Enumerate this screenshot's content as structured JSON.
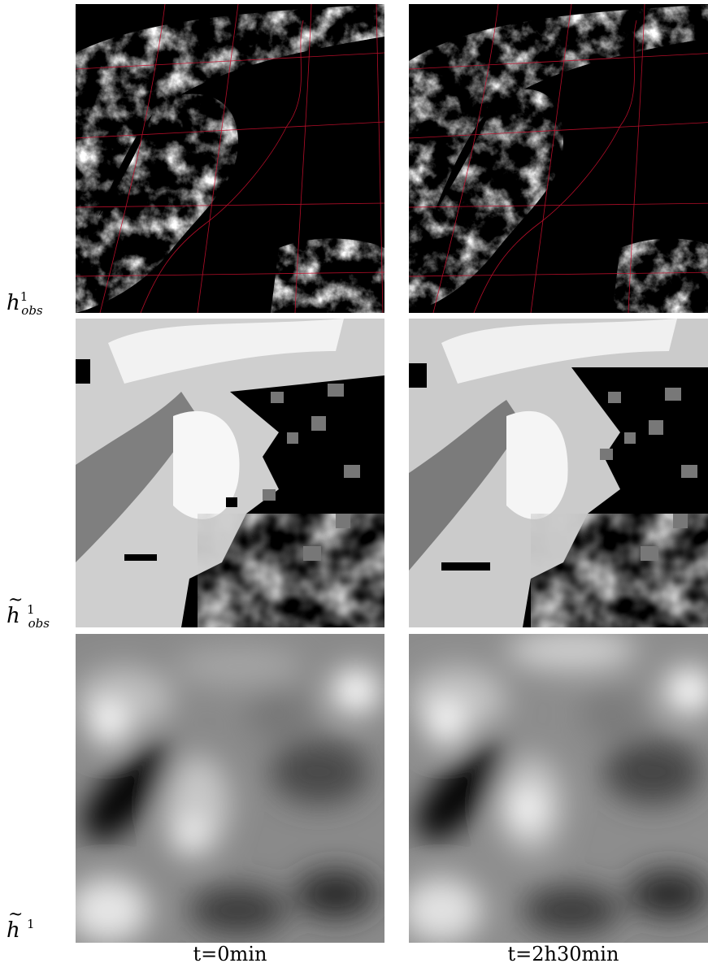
{
  "rows": [
    {
      "base": "h",
      "tilde": false,
      "sup": "1",
      "sub": "obs"
    },
    {
      "base": "h",
      "tilde": true,
      "sup": "1",
      "sub": "obs"
    },
    {
      "base": "h",
      "tilde": true,
      "sup": "1",
      "sub": ""
    }
  ],
  "columns": [
    {
      "label": "t=0min"
    },
    {
      "label": "t=2h30min"
    }
  ]
}
